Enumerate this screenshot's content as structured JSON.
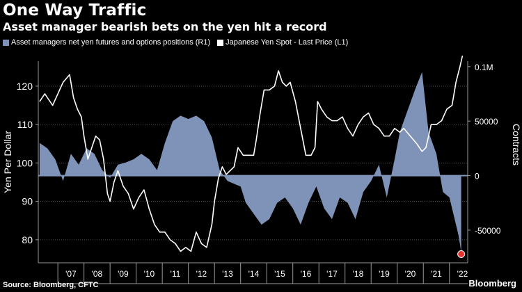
{
  "header": {
    "title": "One Way Traffic",
    "subtitle": "Asset manager bearish bets on the yen hit a record"
  },
  "footer": {
    "source": "Source: Bloomberg, CFTC",
    "brand": "Bloomberg"
  },
  "colors": {
    "background": "#000000",
    "area": "#7f93b8",
    "line": "#ffffff",
    "highlight": "#e8322f"
  },
  "chart_data": {
    "type": "line",
    "legend": [
      {
        "label": "Asset managers net yen futures and options positions (R1)",
        "color": "#7f93b8"
      },
      {
        "label": "Japanese Yen Spot - Last Price (L1)",
        "color": "#ffffff"
      }
    ],
    "ylabel_left": "Yen Per Dollar",
    "ylabel_right": "Contracts",
    "yticks_left": [
      80,
      90,
      100,
      110,
      120
    ],
    "yticks_right": [
      "-50000",
      "0",
      "50000",
      "0.1M"
    ],
    "yticks_right_values": [
      -50000,
      0,
      50000,
      100000
    ],
    "xticks": [
      "'07",
      "'08",
      "'09",
      "'10",
      "'11",
      "'12",
      "'13",
      "'14",
      "'15",
      "'16",
      "'17",
      "'18",
      "'19",
      "'20",
      "'21",
      "'22"
    ],
    "xlim": [
      2006.25,
      2022.7
    ],
    "ylim_left": [
      74,
      126.5
    ],
    "ylim_right": [
      -80000,
      105000
    ],
    "grid": "horizontal dotted",
    "series": [
      {
        "name": "Japanese Yen Spot - Last Price (L1)",
        "axis": "left",
        "x": [
          2006.3,
          2006.5,
          2006.8,
          2007.0,
          2007.2,
          2007.45,
          2007.6,
          2007.75,
          2007.9,
          2008.0,
          2008.15,
          2008.3,
          2008.45,
          2008.6,
          2008.75,
          2008.9,
          2009.0,
          2009.15,
          2009.3,
          2009.5,
          2009.7,
          2009.9,
          2010.1,
          2010.3,
          2010.5,
          2010.7,
          2010.9,
          2011.1,
          2011.3,
          2011.5,
          2011.7,
          2011.9,
          2012.1,
          2012.3,
          2012.5,
          2012.7,
          2012.9,
          2013.0,
          2013.15,
          2013.3,
          2013.45,
          2013.6,
          2013.75,
          2013.9,
          2014.1,
          2014.3,
          2014.5,
          2014.6,
          2014.75,
          2014.9,
          2015.1,
          2015.3,
          2015.45,
          2015.6,
          2015.75,
          2015.9,
          2016.1,
          2016.3,
          2016.5,
          2016.7,
          2016.85,
          2016.95,
          2017.1,
          2017.3,
          2017.5,
          2017.7,
          2017.9,
          2018.1,
          2018.3,
          2018.5,
          2018.7,
          2018.9,
          2019.1,
          2019.3,
          2019.5,
          2019.7,
          2019.9,
          2020.1,
          2020.25,
          2020.5,
          2020.75,
          2020.95,
          2021.1,
          2021.3,
          2021.5,
          2021.7,
          2021.9,
          2022.1,
          2022.25,
          2022.4,
          2022.5
        ],
        "y": [
          116,
          118,
          115,
          118,
          121,
          123,
          117,
          114,
          112,
          107,
          101,
          104,
          107,
          106,
          101,
          92,
          90,
          95,
          98,
          94,
          92,
          88,
          91,
          93,
          88,
          84,
          82,
          82,
          80,
          79,
          77,
          78,
          77,
          82,
          79,
          78,
          84,
          90,
          96,
          99,
          97,
          98,
          99,
          104,
          102,
          102,
          102,
          106,
          113,
          119,
          119,
          120,
          124,
          121,
          120,
          121,
          116,
          109,
          102,
          102,
          104,
          116,
          114,
          112,
          111,
          111,
          112,
          109,
          107,
          110,
          112,
          113,
          110,
          109,
          107,
          107,
          109,
          108,
          109,
          107,
          105,
          103,
          104,
          110,
          110,
          111,
          114,
          115,
          121,
          125,
          128
        ]
      },
      {
        "name": "Asset managers net yen futures and options positions (R1)",
        "axis": "right",
        "x": [
          2006.3,
          2006.6,
          2006.9,
          2007.2,
          2007.5,
          2007.8,
          2008.1,
          2008.4,
          2008.7,
          2009.0,
          2009.3,
          2009.6,
          2009.9,
          2010.2,
          2010.5,
          2010.8,
          2011.1,
          2011.4,
          2011.7,
          2012.0,
          2012.3,
          2012.6,
          2012.9,
          2013.2,
          2013.5,
          2013.8,
          2014.0,
          2014.2,
          2014.5,
          2014.8,
          2015.1,
          2015.4,
          2015.7,
          2016.0,
          2016.3,
          2016.6,
          2016.9,
          2017.2,
          2017.5,
          2017.8,
          2018.1,
          2018.4,
          2018.7,
          2019.0,
          2019.3,
          2019.6,
          2019.9,
          2020.1,
          2020.4,
          2020.7,
          2020.95,
          2021.2,
          2021.5,
          2021.75,
          2022.0,
          2022.2,
          2022.35,
          2022.45
        ],
        "y": [
          30000,
          25000,
          15000,
          -5000,
          20000,
          10000,
          25000,
          20000,
          5000,
          -2000,
          10000,
          12000,
          15000,
          20000,
          15000,
          5000,
          30000,
          50000,
          55000,
          52000,
          55000,
          50000,
          35000,
          5000,
          -5000,
          -8000,
          -10000,
          -25000,
          -35000,
          -45000,
          -40000,
          -25000,
          -20000,
          -30000,
          -45000,
          -25000,
          -10000,
          -30000,
          -40000,
          -20000,
          -25000,
          -40000,
          -15000,
          -5000,
          10000,
          -20000,
          15000,
          40000,
          60000,
          80000,
          95000,
          40000,
          20000,
          -15000,
          -20000,
          -40000,
          -55000,
          -70000
        ]
      }
    ],
    "marker": {
      "x": 2022.45,
      "y": -72000,
      "axis": "right",
      "color": "#e8322f"
    }
  }
}
